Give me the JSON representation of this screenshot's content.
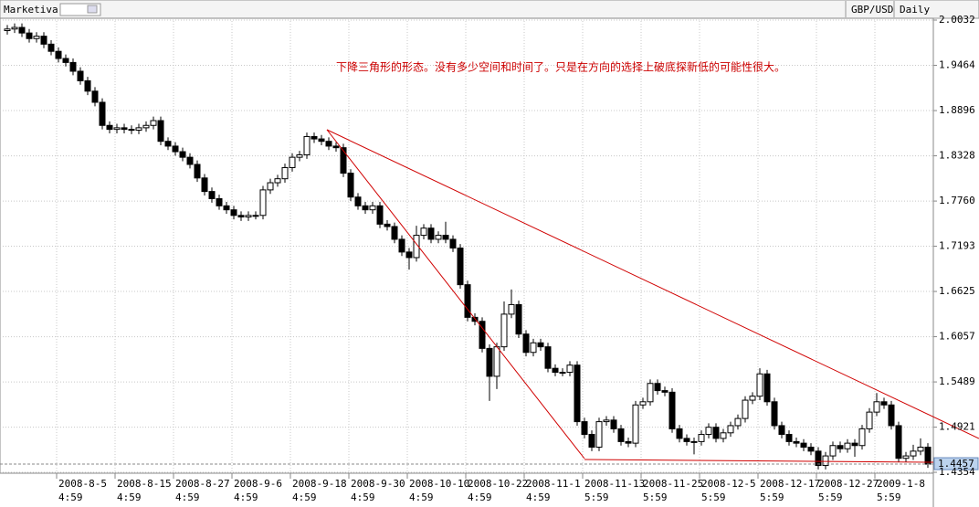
{
  "chart_data": {
    "type": "candlestick",
    "source": "Marketiva",
    "symbol": "GBP/USD",
    "timeframe": "Daily",
    "annotation": "下降三角形的形态。没有多少空间和时间了。只是在方向的选择上破底探新低的可能性很大。",
    "categories": [
      null,
      null,
      null,
      null,
      null,
      null,
      null,
      "2008-8-5",
      null,
      null,
      null,
      null,
      null,
      null,
      null,
      "2008-8-15",
      null,
      null,
      null,
      null,
      null,
      null,
      null,
      "2008-8-27",
      null,
      null,
      null,
      null,
      null,
      null,
      null,
      "2008-9-6",
      null,
      null,
      null,
      null,
      null,
      null,
      null,
      "2008-9-18",
      null,
      null,
      null,
      null,
      null,
      null,
      null,
      "2008-9-30",
      null,
      null,
      null,
      null,
      null,
      null,
      null,
      "2008-10-10",
      null,
      null,
      null,
      null,
      null,
      null,
      null,
      "2008-10-22",
      null,
      null,
      null,
      null,
      null,
      null,
      null,
      "2008-11-1",
      null,
      null,
      null,
      null,
      null,
      null,
      null,
      "2008-11-13",
      null,
      null,
      null,
      null,
      null,
      null,
      null,
      "2008-11-25",
      null,
      null,
      null,
      null,
      null,
      null,
      null,
      "2008-12-5",
      null,
      null,
      null,
      null,
      null,
      null,
      null,
      "2008-12-17",
      null,
      null,
      null,
      null,
      null,
      null,
      null,
      "2008-12-27",
      null,
      null,
      null,
      null,
      null,
      null,
      null,
      "2009-1-8",
      null,
      null,
      null,
      null,
      null,
      null,
      null
    ],
    "category_times": [
      null,
      null,
      null,
      null,
      null,
      null,
      null,
      "4:59",
      null,
      null,
      null,
      null,
      null,
      null,
      null,
      "4:59",
      null,
      null,
      null,
      null,
      null,
      null,
      null,
      "4:59",
      null,
      null,
      null,
      null,
      null,
      null,
      null,
      "4:59",
      null,
      null,
      null,
      null,
      null,
      null,
      null,
      "4:59",
      null,
      null,
      null,
      null,
      null,
      null,
      null,
      "4:59",
      null,
      null,
      null,
      null,
      null,
      null,
      null,
      "4:59",
      null,
      null,
      null,
      null,
      null,
      null,
      null,
      "4:59",
      null,
      null,
      null,
      null,
      null,
      null,
      null,
      "4:59",
      null,
      null,
      null,
      null,
      null,
      null,
      null,
      "5:59",
      null,
      null,
      null,
      null,
      null,
      null,
      null,
      "5:59",
      null,
      null,
      null,
      null,
      null,
      null,
      null,
      "5:59",
      null,
      null,
      null,
      null,
      null,
      null,
      null,
      "5:59",
      null,
      null,
      null,
      null,
      null,
      null,
      null,
      "5:59",
      null,
      null,
      null,
      null,
      null,
      null,
      null,
      "5:59",
      null,
      null,
      null,
      null,
      null,
      null,
      null
    ],
    "open": [
      1.99,
      1.992,
      1.994,
      1.987,
      1.98,
      1.983,
      1.973,
      1.964,
      1.955,
      1.95,
      1.939,
      1.927,
      1.914,
      1.9,
      1.871,
      1.866,
      1.868,
      1.866,
      1.865,
      1.868,
      1.871,
      1.877,
      1.851,
      1.845,
      1.838,
      1.831,
      1.822,
      1.805,
      1.788,
      1.779,
      1.77,
      1.765,
      1.758,
      1.756,
      1.758,
      1.758,
      1.79,
      1.799,
      1.804,
      1.818,
      1.831,
      1.834,
      1.857,
      1.854,
      1.851,
      1.845,
      1.843,
      1.811,
      1.781,
      1.77,
      1.765,
      1.77,
      1.747,
      1.744,
      1.728,
      1.712,
      1.705,
      1.733,
      1.742,
      1.728,
      1.733,
      1.728,
      1.717,
      1.671,
      1.63,
      1.625,
      1.591,
      1.556,
      1.593,
      1.634,
      1.646,
      1.609,
      1.586,
      1.598,
      1.593,
      1.566,
      1.561,
      1.561,
      1.57,
      1.499,
      1.483,
      1.467,
      1.499,
      1.501,
      1.49,
      1.474,
      1.472,
      1.52,
      1.524,
      1.547,
      1.538,
      1.536,
      1.49,
      1.478,
      1.474,
      1.474,
      1.483,
      1.492,
      1.478,
      1.485,
      1.494,
      1.503,
      1.526,
      1.531,
      1.559,
      1.524,
      1.494,
      1.483,
      1.474,
      1.472,
      1.467,
      1.462,
      1.444,
      1.456,
      1.469,
      1.465,
      1.472,
      1.469,
      1.49,
      1.511,
      1.524,
      1.52,
      1.494,
      1.453,
      1.456,
      1.462,
      1.467
    ],
    "high": [
      1.997,
      1.999,
      1.999,
      1.992,
      1.988,
      1.988,
      1.978,
      1.969,
      1.96,
      1.955,
      1.944,
      1.932,
      1.919,
      1.905,
      1.876,
      1.873,
      1.873,
      1.871,
      1.873,
      1.876,
      1.882,
      1.882,
      1.856,
      1.85,
      1.843,
      1.836,
      1.827,
      1.81,
      1.793,
      1.784,
      1.775,
      1.77,
      1.763,
      1.763,
      1.763,
      1.795,
      1.804,
      1.809,
      1.823,
      1.836,
      1.839,
      1.862,
      1.862,
      1.859,
      1.856,
      1.85,
      1.848,
      1.816,
      1.786,
      1.775,
      1.775,
      1.775,
      1.752,
      1.749,
      1.733,
      1.717,
      1.745,
      1.747,
      1.747,
      1.738,
      1.75,
      1.733,
      1.722,
      1.676,
      1.635,
      1.63,
      1.596,
      1.598,
      1.65,
      1.665,
      1.651,
      1.614,
      1.603,
      1.603,
      1.598,
      1.571,
      1.566,
      1.575,
      1.575,
      1.504,
      1.488,
      1.504,
      1.506,
      1.506,
      1.495,
      1.479,
      1.525,
      1.529,
      1.552,
      1.552,
      1.543,
      1.541,
      1.495,
      1.483,
      1.479,
      1.488,
      1.497,
      1.497,
      1.49,
      1.499,
      1.508,
      1.531,
      1.536,
      1.566,
      1.564,
      1.529,
      1.499,
      1.488,
      1.479,
      1.477,
      1.472,
      1.467,
      1.461,
      1.474,
      1.474,
      1.477,
      1.477,
      1.495,
      1.516,
      1.535,
      1.529,
      1.525,
      1.499,
      1.461,
      1.47,
      1.478,
      1.472
    ],
    "low": [
      1.985,
      1.987,
      1.982,
      1.975,
      1.975,
      1.968,
      1.959,
      1.95,
      1.945,
      1.934,
      1.922,
      1.909,
      1.895,
      1.866,
      1.861,
      1.861,
      1.861,
      1.86,
      1.86,
      1.863,
      1.866,
      1.846,
      1.84,
      1.833,
      1.826,
      1.817,
      1.8,
      1.783,
      1.774,
      1.765,
      1.76,
      1.753,
      1.751,
      1.751,
      1.753,
      1.753,
      1.785,
      1.794,
      1.799,
      1.813,
      1.826,
      1.829,
      1.849,
      1.846,
      1.84,
      1.838,
      1.806,
      1.776,
      1.765,
      1.76,
      1.76,
      1.742,
      1.739,
      1.723,
      1.707,
      1.69,
      1.7,
      1.728,
      1.723,
      1.723,
      1.723,
      1.712,
      1.666,
      1.625,
      1.62,
      1.586,
      1.525,
      1.54,
      1.588,
      1.629,
      1.604,
      1.581,
      1.581,
      1.588,
      1.561,
      1.556,
      1.556,
      1.556,
      1.494,
      1.478,
      1.462,
      1.462,
      1.494,
      1.485,
      1.469,
      1.467,
      1.467,
      1.515,
      1.519,
      1.533,
      1.531,
      1.485,
      1.473,
      1.469,
      1.458,
      1.469,
      1.478,
      1.473,
      1.473,
      1.48,
      1.489,
      1.498,
      1.521,
      1.526,
      1.519,
      1.489,
      1.478,
      1.469,
      1.467,
      1.462,
      1.457,
      1.439,
      1.439,
      1.451,
      1.46,
      1.46,
      1.455,
      1.464,
      1.485,
      1.506,
      1.515,
      1.489,
      1.448,
      1.448,
      1.451,
      1.457,
      1.441
    ],
    "close": [
      1.992,
      1.994,
      1.987,
      1.98,
      1.983,
      1.973,
      1.964,
      1.955,
      1.95,
      1.939,
      1.927,
      1.914,
      1.9,
      1.871,
      1.866,
      1.868,
      1.866,
      1.865,
      1.868,
      1.871,
      1.877,
      1.851,
      1.845,
      1.838,
      1.831,
      1.822,
      1.805,
      1.788,
      1.779,
      1.77,
      1.765,
      1.758,
      1.756,
      1.758,
      1.758,
      1.79,
      1.799,
      1.804,
      1.818,
      1.831,
      1.834,
      1.857,
      1.854,
      1.851,
      1.845,
      1.843,
      1.811,
      1.781,
      1.77,
      1.765,
      1.77,
      1.747,
      1.744,
      1.728,
      1.712,
      1.705,
      1.733,
      1.742,
      1.728,
      1.733,
      1.728,
      1.717,
      1.671,
      1.63,
      1.625,
      1.591,
      1.556,
      1.593,
      1.634,
      1.646,
      1.609,
      1.586,
      1.598,
      1.593,
      1.566,
      1.561,
      1.561,
      1.57,
      1.499,
      1.483,
      1.467,
      1.499,
      1.501,
      1.49,
      1.474,
      1.472,
      1.52,
      1.524,
      1.547,
      1.538,
      1.536,
      1.49,
      1.478,
      1.474,
      1.474,
      1.483,
      1.492,
      1.478,
      1.485,
      1.494,
      1.503,
      1.526,
      1.531,
      1.559,
      1.524,
      1.494,
      1.483,
      1.474,
      1.472,
      1.467,
      1.462,
      1.444,
      1.456,
      1.469,
      1.465,
      1.472,
      1.469,
      1.49,
      1.511,
      1.524,
      1.52,
      1.494,
      1.453,
      1.456,
      1.462,
      1.467,
      1.4457
    ],
    "up_color": "#ffffff",
    "down_color": "#000000",
    "last_price": 1.4457,
    "ylim": [
      1.4343,
      2.0055
    ],
    "yticks": [
      2.0032,
      1.9464,
      1.8896,
      1.8328,
      {
        "value": 1.776,
        "label": "1.7760"
      },
      1.7193,
      1.6625,
      1.6057,
      1.5489,
      1.4921,
      1.4354
    ],
    "grid": true
  }
}
